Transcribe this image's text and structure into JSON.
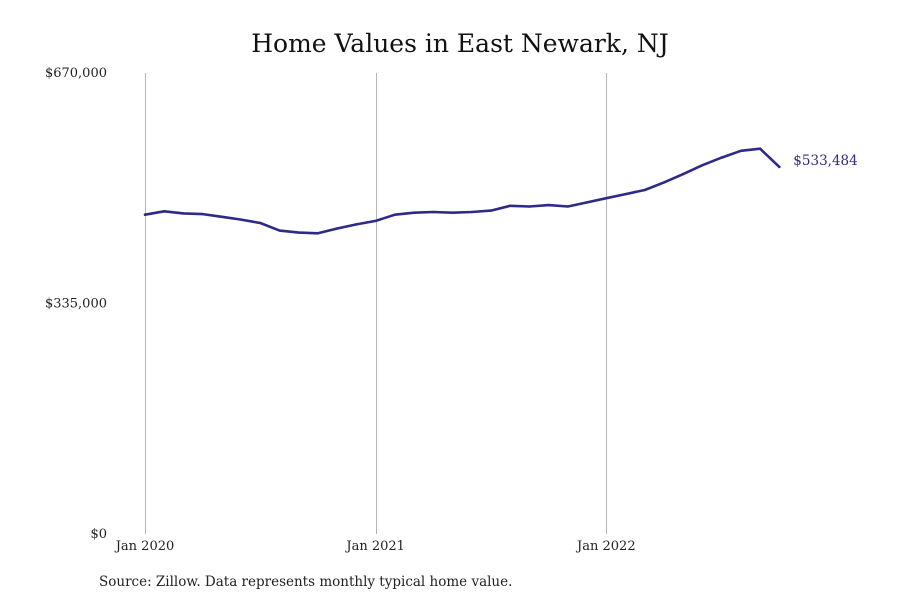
{
  "chart_data": {
    "type": "line",
    "title": "Home Values in East Newark, NJ",
    "source": "Source: Zillow. Data represents monthly typical home value.",
    "xlabel": "",
    "ylabel": "",
    "ylim": [
      0,
      670000
    ],
    "y_ticks": [
      {
        "value": 0,
        "label": "$0"
      },
      {
        "value": 335000,
        "label": "$335,000"
      },
      {
        "value": 670000,
        "label": "$670,000"
      }
    ],
    "x_range": [
      "2020-01",
      "2023-01"
    ],
    "x_ticks": [
      {
        "value": "2020-01",
        "label": "Jan 2020"
      },
      {
        "value": "2021-01",
        "label": "Jan 2021"
      },
      {
        "value": "2022-01",
        "label": "Jan 2022"
      }
    ],
    "grid": "vertical",
    "line_color": "#2e2a8a",
    "end_label": "$533,484",
    "series": [
      {
        "x": [
          "2020-01",
          "2020-02",
          "2020-03",
          "2020-04",
          "2020-05",
          "2020-06",
          "2020-07",
          "2020-08",
          "2020-09",
          "2020-10",
          "2020-11",
          "2020-12",
          "2021-01",
          "2021-02",
          "2021-03",
          "2021-04",
          "2021-05",
          "2021-06",
          "2021-07",
          "2021-08",
          "2021-09",
          "2021-10",
          "2021-11",
          "2021-12",
          "2022-01",
          "2022-02",
          "2022-03",
          "2022-04",
          "2022-05",
          "2022-06",
          "2022-07",
          "2022-08",
          "2022-09",
          "2022-10"
        ],
        "values": [
          464000,
          469000,
          466000,
          465000,
          461000,
          457000,
          452000,
          441000,
          438000,
          437000,
          444000,
          450000,
          455000,
          464000,
          467000,
          468000,
          467000,
          468000,
          470000,
          477000,
          476000,
          478000,
          476000,
          482000,
          488000,
          494000,
          500000,
          511000,
          523000,
          536000,
          547000,
          557000,
          560000,
          533484
        ]
      }
    ]
  }
}
